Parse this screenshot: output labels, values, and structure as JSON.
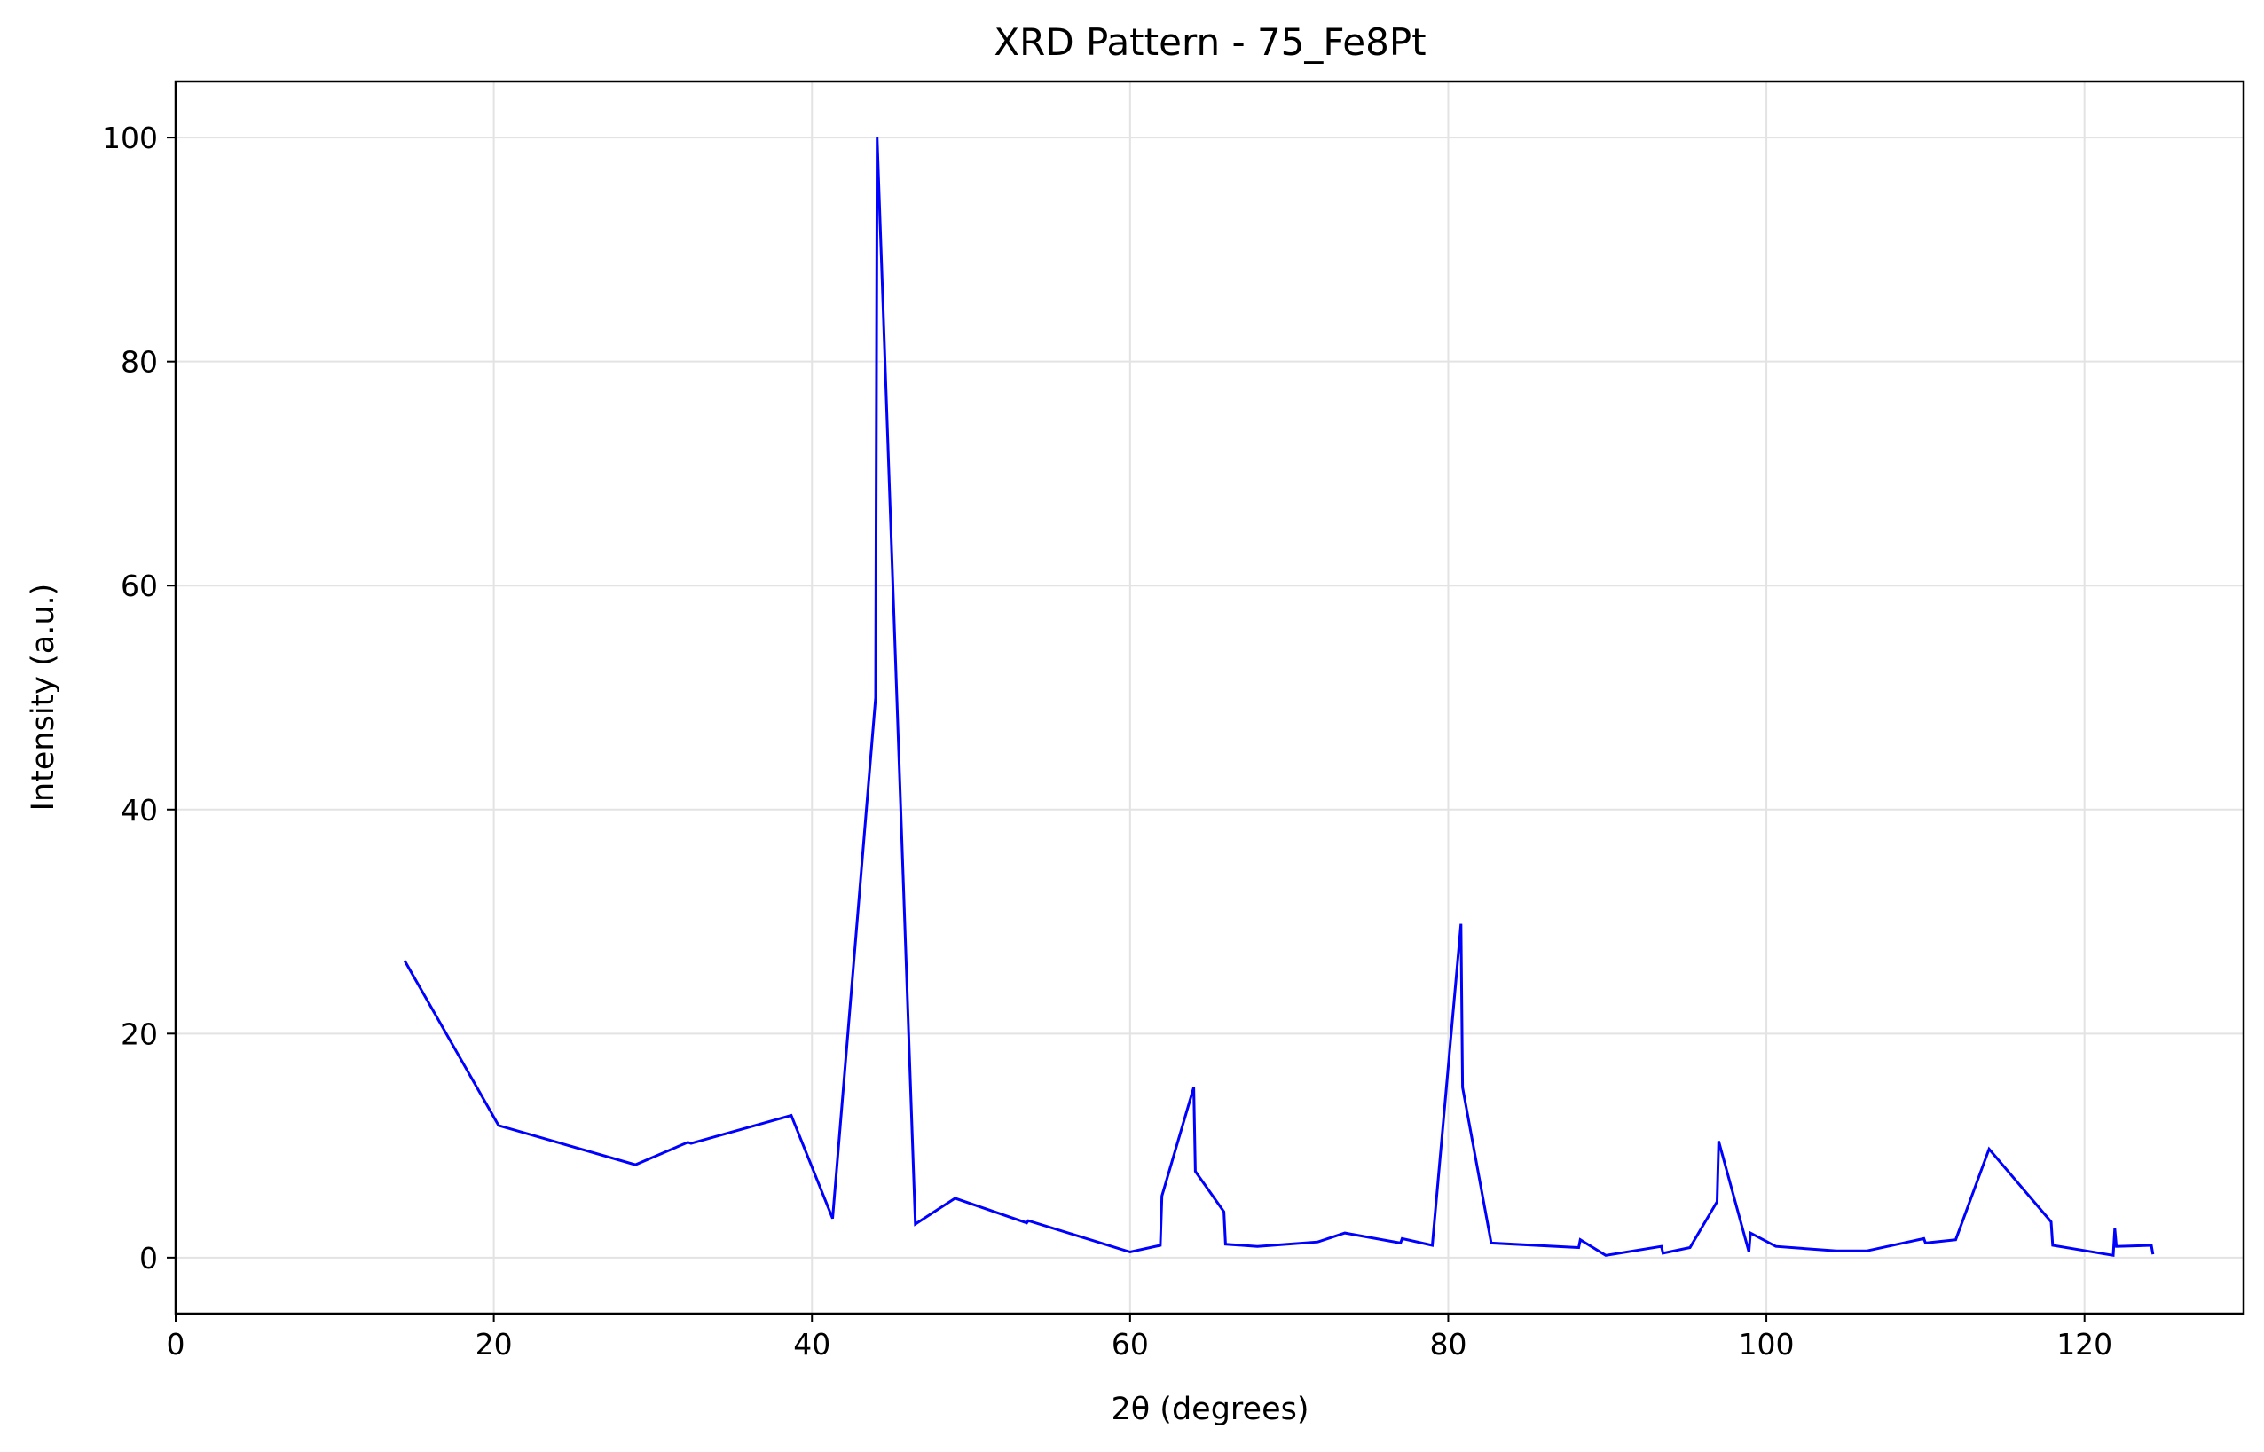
{
  "chart_data": {
    "type": "line",
    "title": "XRD Pattern - 75_Fe8Pt",
    "xlabel": "2θ (degrees)",
    "ylabel": "Intensity (a.u.)",
    "xlim": [
      0,
      130
    ],
    "ylim": [
      -5,
      105
    ],
    "xticks": [
      0,
      20,
      40,
      60,
      80,
      100,
      120
    ],
    "yticks": [
      0,
      20,
      40,
      60,
      80,
      100
    ],
    "grid": true,
    "line_color": "#0000ff",
    "series": [
      {
        "x": [
          14.4,
          20.3,
          28.9,
          32.2,
          32.4,
          38.7,
          41.3,
          44.0,
          44.1,
          46.5,
          49.0,
          53.5,
          53.6,
          60.0,
          61.9,
          62.0,
          64.0,
          64.1,
          65.9,
          66.0,
          68.0,
          71.8,
          73.5,
          77.0,
          77.1,
          79.0,
          80.8,
          80.9,
          82.7,
          88.2,
          88.3,
          89.9,
          93.4,
          93.5,
          95.2,
          96.9,
          97.0,
          98.9,
          99.0,
          100.6,
          104.4,
          106.3,
          109.9,
          110.0,
          111.9,
          114.0,
          117.9,
          118.0,
          121.8,
          121.9,
          122.0,
          124.2,
          124.3
        ],
        "y": [
          26.5,
          11.8,
          8.3,
          10.3,
          10.2,
          12.7,
          3.5,
          50.0,
          100.0,
          3.0,
          5.3,
          3.1,
          3.3,
          0.5,
          1.1,
          5.5,
          15.2,
          7.7,
          4.1,
          1.2,
          1.0,
          1.4,
          2.2,
          1.3,
          1.7,
          1.1,
          29.8,
          15.2,
          1.3,
          0.9,
          1.6,
          0.2,
          1.0,
          0.4,
          0.9,
          5.0,
          10.4,
          0.5,
          2.2,
          1.0,
          0.6,
          0.6,
          1.7,
          1.3,
          1.6,
          9.7,
          3.2,
          1.1,
          0.2,
          2.6,
          1.0,
          1.1,
          0.3
        ]
      }
    ]
  }
}
